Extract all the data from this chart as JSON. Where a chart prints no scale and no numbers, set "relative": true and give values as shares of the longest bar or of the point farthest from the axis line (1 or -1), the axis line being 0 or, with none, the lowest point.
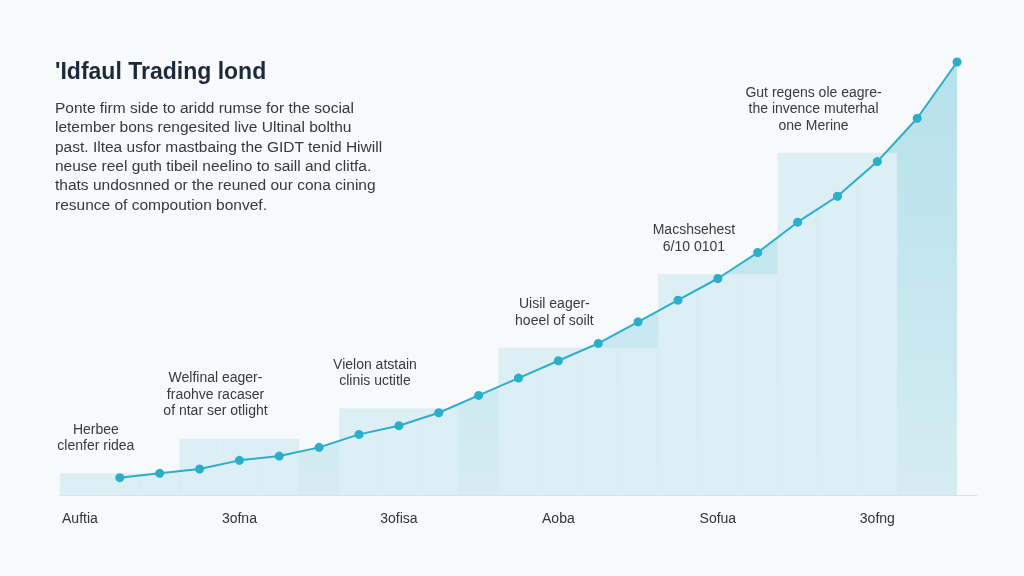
{
  "chart_data": {
    "type": "area",
    "title": "'Idfaul Trading lond",
    "subtitle": "Ponte firm side to aridd rumse for the social\nletember bons rengesited live Ultinal bolthu\npast. Iltea usfor mastbaing the GIDT tenid Hiwill\nneuse reel guth tibeil neelino to saill and clitfa.\nthats undosnned or the reuned our cona cining\nresunce of compoution bonvef.",
    "relative": true,
    "categories": [
      "Auftia",
      null,
      null,
      null,
      "3ofna",
      null,
      null,
      null,
      "3ofisa",
      null,
      null,
      null,
      "Aoba",
      null,
      null,
      null,
      "Sofua",
      null,
      null,
      null,
      "3ofng",
      null,
      null
    ],
    "series": [
      {
        "type": "bar",
        "color": "#dbeff4",
        "values": [
          0.05,
          0.05,
          0.05,
          0.13,
          0.13,
          0.13,
          null,
          0.2,
          0.2,
          0.2,
          null,
          0.34,
          0.34,
          0.34,
          0.34,
          0.51,
          0.51,
          0.51,
          0.79,
          0.79,
          0.79,
          null,
          null
        ]
      },
      {
        "color": "#2aaecb",
        "values": [
          null,
          0.04,
          0.05,
          0.06,
          0.08,
          0.09,
          0.11,
          0.14,
          0.16,
          0.19,
          0.23,
          0.27,
          0.31,
          0.35,
          0.4,
          0.45,
          0.5,
          0.56,
          0.63,
          0.69,
          0.77,
          0.87,
          1.0
        ]
      }
    ],
    "marker": "circle",
    "line_style": "solid",
    "annotations": [
      "Herbee\nclenfer ridea",
      "Welfinal eager-\nfraohve racaser\nof ntar ser otlight",
      "Vielon atstain\nclinis uctitle",
      "Uisil eager-\nhoeel of soilt",
      "Macshsehest\n6/10 0101",
      "Gut regens ole eagre-\nthe invence muterhal\none Merine"
    ]
  }
}
